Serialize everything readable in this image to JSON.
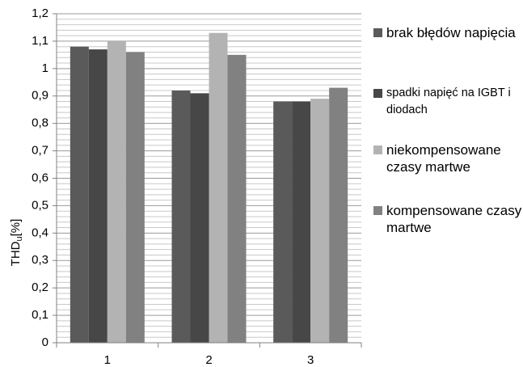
{
  "chart_data": {
    "type": "bar",
    "ylabel": {
      "main": "THD",
      "sub": "u",
      "unit": "[%]"
    },
    "categories": [
      "1",
      "2",
      "3"
    ],
    "series": [
      {
        "name": "brak błędów napięcia",
        "color": "#5a5a5a",
        "values": [
          1.08,
          0.92,
          0.88
        ]
      },
      {
        "name": "spadki napięć na IGBT i diodach",
        "color": "#474747",
        "values": [
          1.07,
          0.91,
          0.88
        ]
      },
      {
        "name": "niekompensowane czasy martwe",
        "color": "#b3b3b3",
        "values": [
          1.1,
          1.13,
          0.89
        ]
      },
      {
        "name": "kompensowane czasy martwe",
        "color": "#818181",
        "values": [
          1.06,
          1.05,
          0.93
        ]
      }
    ],
    "ylim": [
      0,
      1.2
    ],
    "yticks": [
      0,
      {
        "value": 0.1,
        "label": "0,1"
      },
      {
        "value": 0.2,
        "label": "0,2"
      },
      {
        "value": 0.3,
        "label": "0,3"
      },
      {
        "value": 0.4,
        "label": "0,4"
      },
      {
        "value": 0.5,
        "label": "0,5"
      },
      {
        "value": 0.6,
        "label": "0,6"
      },
      {
        "value": 0.7,
        "label": "0,7"
      },
      {
        "value": 0.8,
        "label": "0,8"
      },
      {
        "value": 0.9,
        "label": "0,9"
      },
      1,
      {
        "value": 1.1,
        "label": "1,1"
      },
      {
        "value": 1.2,
        "label": "1,2"
      }
    ],
    "grid": true,
    "minor_grid": 5,
    "legend": "right"
  }
}
